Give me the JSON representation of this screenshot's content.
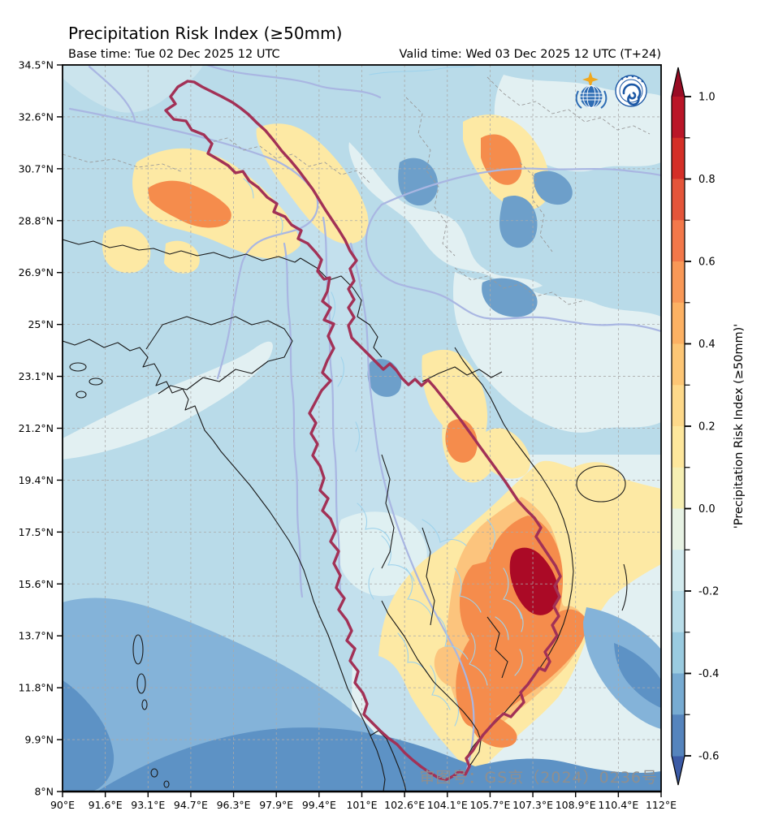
{
  "header": {
    "title": "Precipitation Risk Index (≥50mm)",
    "base_time": "Base time: Tue 02 Dec 2025 12 UTC",
    "valid_time": "Valid time: Wed 03 Dec 2025 12 UTC (T+24)"
  },
  "axes": {
    "lat_tick_labels": [
      "34.5°N",
      "32.6°N",
      "30.7°N",
      "28.8°N",
      "26.9°N",
      "25°N",
      "23.1°N",
      "21.2°N",
      "19.4°N",
      "17.5°N",
      "15.6°N",
      "13.7°N",
      "11.8°N",
      "9.9°N",
      "8°N"
    ],
    "lon_tick_labels": [
      "90°E",
      "91.6°E",
      "93.1°E",
      "94.7°E",
      "96.3°E",
      "97.9°E",
      "99.4°E",
      "101°E",
      "102.6°E",
      "104.1°E",
      "105.7°E",
      "107.3°E",
      "108.9°E",
      "110.4°E",
      "112°E"
    ]
  },
  "colorbar": {
    "label": "'Precipitation Risk Index (≥50mm)'",
    "tick_labels": [
      "1.0",
      "0.8",
      "0.6",
      "0.4",
      "0.2",
      "0.0",
      "-0.2",
      "-0.4",
      "-0.6"
    ],
    "value_max": 1.0,
    "value_min": -0.6,
    "segment_colors": [
      "#ba1628",
      "#d42f27",
      "#e4553a",
      "#f3784a",
      "#f99857",
      "#fdb163",
      "#fdc675",
      "#fed98a",
      "#fee79c",
      "#f6efb3",
      "#e7f2e4",
      "#d2eaee",
      "#b9dde9",
      "#9acbe0",
      "#77abd2",
      "#5584bd"
    ],
    "arrow_top_color": "#990c24",
    "arrow_bottom_color": "#3c5ba6"
  },
  "map": {
    "watermark": "审图号：GS京（2024）0236号",
    "logos": [
      {
        "name": "wmo-logo"
      },
      {
        "name": "cma-logo"
      }
    ],
    "region_colors": {
      "base": "#b9dbe9",
      "near_zero": "#e2f0f2",
      "risk_low": "#fde9a4",
      "risk_mid": "#fcc47d",
      "risk_high": "#f58c4c",
      "risk_extreme": "#ab0a26",
      "neg_low": "#6d9fca",
      "neg_mid": "#84b3d9",
      "neg_high": "#5d92c5",
      "basin_outline": "#a23156",
      "river": "#9fd3ec",
      "main_river": "#a9b6e2",
      "border": "#1a1a1a",
      "province_border": "#9a9a9a",
      "gridline": "#aaaaaa",
      "watermark_color": "#8f8f8f"
    }
  }
}
